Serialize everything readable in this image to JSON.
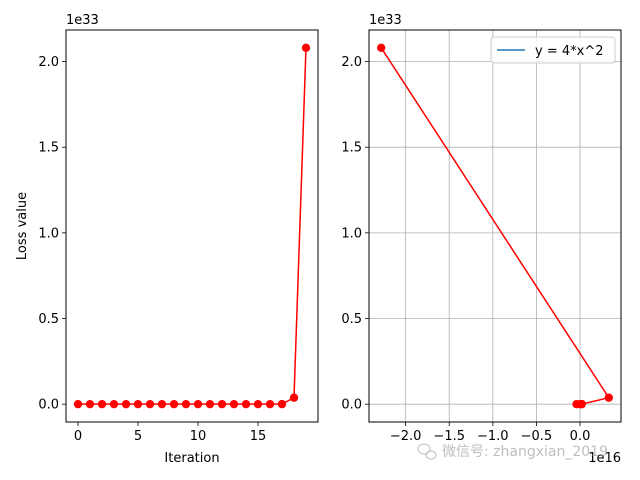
{
  "chart_data": [
    {
      "type": "line",
      "xlabel": "Iteration",
      "ylabel": "Loss value",
      "y_offset_label": "1e33",
      "xlim": [
        -1,
        20
      ],
      "ylim": [
        -0.104,
        2.184
      ],
      "x_ticks": [
        0,
        5,
        10,
        15
      ],
      "x_tick_labels": [
        "0",
        "5",
        "10",
        "15"
      ],
      "y_ticks": [
        0.0,
        0.5,
        1.0,
        1.5,
        2.0
      ],
      "y_tick_labels": [
        "0.0",
        "0.5",
        "1.0",
        "1.5",
        "2.0"
      ],
      "grid": false,
      "series": [
        {
          "color": "#ff0000",
          "marker": "circle",
          "x": [
            0,
            1,
            2,
            3,
            4,
            5,
            6,
            7,
            8,
            9,
            10,
            11,
            12,
            13,
            14,
            15,
            16,
            17,
            18,
            19
          ],
          "y": [
            0,
            0,
            0,
            0,
            0,
            0,
            0,
            0,
            0,
            0,
            0,
            0,
            0,
            0,
            0,
            0,
            0,
            0.0004,
            0.038,
            2.08
          ]
        }
      ]
    },
    {
      "type": "line",
      "xlabel": "",
      "ylabel": "",
      "x_offset_label": "1e16",
      "y_offset_label": "1e33",
      "xlim": [
        -2.42,
        0.47
      ],
      "ylim": [
        -0.104,
        2.184
      ],
      "x_ticks": [
        -2.0,
        -1.5,
        -1.0,
        -0.5,
        0.0
      ],
      "x_tick_labels": [
        "−2.0",
        "−1.5",
        "−1.0",
        "−0.5",
        "0.0"
      ],
      "y_ticks": [
        0.0,
        0.5,
        1.0,
        1.5,
        2.0
      ],
      "y_tick_labels": [
        "0.0",
        "0.5",
        "1.0",
        "1.5",
        "2.0"
      ],
      "grid": true,
      "legend": {
        "position": "top-right",
        "label": "y = 4*x^2",
        "color": "#1f77b4"
      },
      "series": [
        {
          "color": "#ff0000",
          "marker": "circle",
          "x": [
            -0.04,
            0.0,
            0.02,
            0.33,
            -2.28
          ],
          "y": [
            0,
            0,
            0.0004,
            0.038,
            2.08
          ]
        }
      ]
    }
  ],
  "watermark": {
    "text": "微信号: zhangxian_2019"
  }
}
